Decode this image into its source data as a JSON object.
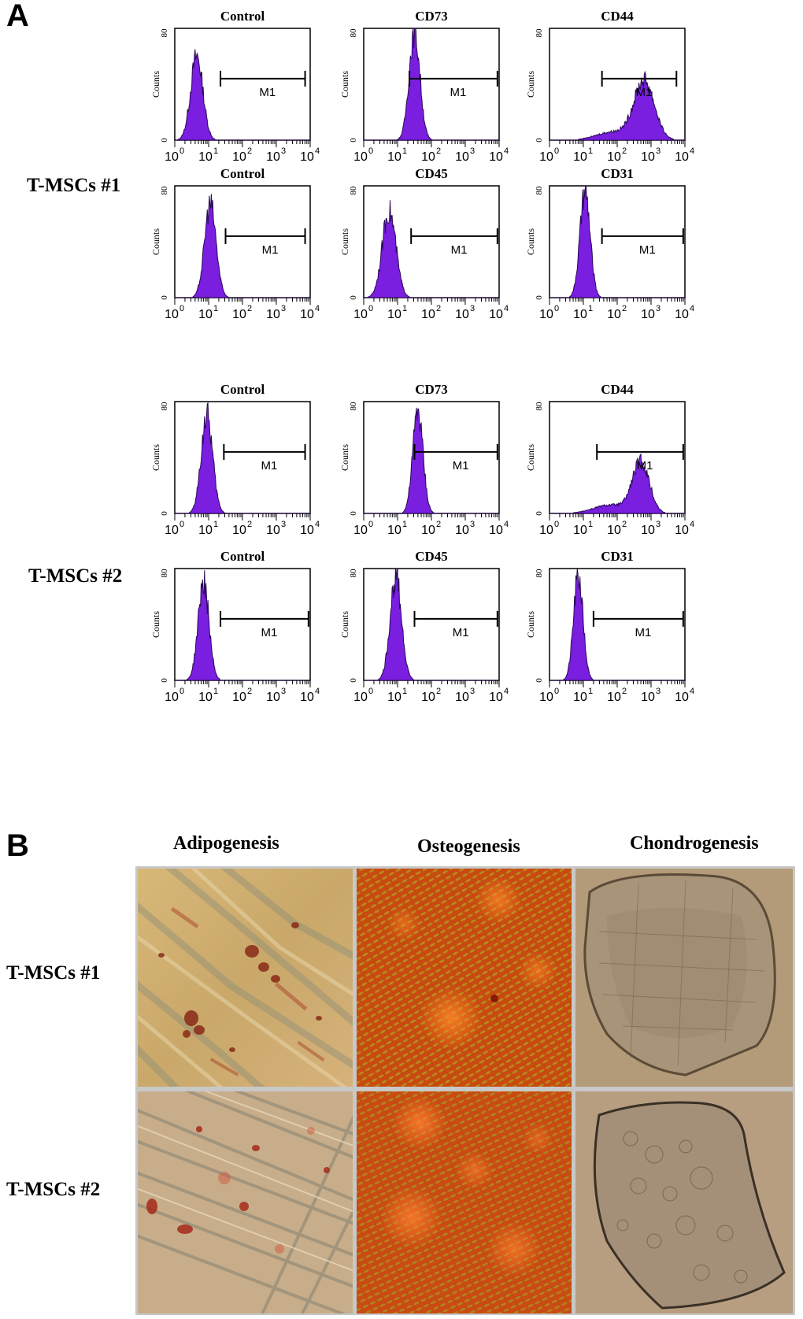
{
  "figure": {
    "panel_a_letter": "A",
    "panel_b_letter": "B",
    "groups": [
      "T-MSCs #1",
      "T-MSCs #2"
    ],
    "flow_axis": {
      "y_label": "Counts",
      "y_ticks": [
        "0",
        "80"
      ],
      "x_ticks": [
        "10",
        "10",
        "10",
        "10",
        "10"
      ],
      "x_exponents": [
        "0",
        "1",
        "2",
        "3",
        "4"
      ],
      "gate_label": "M1"
    },
    "differentiation": {
      "columns": [
        "Adipogenesis",
        "Osteogenesis",
        "Chondrogenesis"
      ],
      "rows": [
        "T-MSCs #1",
        "T-MSCs #2"
      ]
    }
  },
  "chart_data": [
    {
      "type": "histogram",
      "group": "T-MSCs #1",
      "title": "Control",
      "peak_log": 0.65,
      "width": 0.18,
      "height": 60,
      "gate": [
        1.35,
        3.85
      ],
      "ylabel": "Counts",
      "ylim": [
        0,
        80
      ],
      "xscale": "log",
      "xlim": [
        0,
        4
      ]
    },
    {
      "type": "histogram",
      "group": "T-MSCs #1",
      "title": "CD73",
      "peak_log": 1.5,
      "width": 0.16,
      "height": 78,
      "gate": [
        1.35,
        3.95
      ],
      "ylabel": "Counts",
      "ylim": [
        0,
        80
      ],
      "xscale": "log",
      "xlim": [
        0,
        4
      ]
    },
    {
      "type": "histogram",
      "group": "T-MSCs #1",
      "title": "CD44",
      "peak_log": 2.8,
      "width": 0.3,
      "height": 42,
      "gate": [
        1.55,
        3.75
      ],
      "ylabel": "Counts",
      "ylim": [
        0,
        80
      ],
      "xscale": "log",
      "xlim": [
        0,
        4
      ]
    },
    {
      "type": "histogram",
      "group": "T-MSCs #1",
      "title": "Control",
      "peak_log": 1.05,
      "width": 0.17,
      "height": 67,
      "gate": [
        1.5,
        3.85
      ],
      "ylabel": "Counts",
      "ylim": [
        0,
        80
      ],
      "xscale": "log",
      "xlim": [
        0,
        4
      ]
    },
    {
      "type": "histogram",
      "group": "T-MSCs #1",
      "title": "CD45",
      "peak_log": 0.75,
      "width": 0.2,
      "height": 62,
      "gate": [
        1.4,
        3.95
      ],
      "ylabel": "Counts",
      "ylim": [
        0,
        80
      ],
      "xscale": "log",
      "xlim": [
        0,
        4
      ]
    },
    {
      "type": "histogram",
      "group": "T-MSCs #1",
      "title": "CD31",
      "peak_log": 1.05,
      "width": 0.15,
      "height": 75,
      "gate": [
        1.55,
        3.95
      ],
      "ylabel": "Counts",
      "ylim": [
        0,
        80
      ],
      "xscale": "log",
      "xlim": [
        0,
        4
      ]
    },
    {
      "type": "histogram",
      "group": "T-MSCs #2",
      "title": "Control",
      "peak_log": 0.95,
      "width": 0.17,
      "height": 70,
      "gate": [
        1.45,
        3.85
      ],
      "ylabel": "Counts",
      "ylim": [
        0,
        80
      ],
      "xscale": "log",
      "xlim": [
        0,
        4
      ]
    },
    {
      "type": "histogram",
      "group": "T-MSCs #2",
      "title": "CD73",
      "peak_log": 1.6,
      "width": 0.15,
      "height": 74,
      "gate": [
        1.5,
        3.95
      ],
      "ylabel": "Counts",
      "ylim": [
        0,
        80
      ],
      "xscale": "log",
      "xlim": [
        0,
        4
      ]
    },
    {
      "type": "histogram",
      "group": "T-MSCs #2",
      "title": "CD44",
      "peak_log": 2.7,
      "width": 0.25,
      "height": 36,
      "gate": [
        1.4,
        3.95
      ],
      "ylabel": "Counts",
      "ylim": [
        0,
        80
      ],
      "xscale": "log",
      "xlim": [
        0,
        4
      ]
    },
    {
      "type": "histogram",
      "group": "T-MSCs #2",
      "title": "Control",
      "peak_log": 0.85,
      "width": 0.16,
      "height": 70,
      "gate": [
        1.35,
        3.95
      ],
      "ylabel": "Counts",
      "ylim": [
        0,
        80
      ],
      "xscale": "log",
      "xlim": [
        0,
        4
      ]
    },
    {
      "type": "histogram",
      "group": "T-MSCs #2",
      "title": "CD45",
      "peak_log": 0.95,
      "width": 0.17,
      "height": 74,
      "gate": [
        1.5,
        3.95
      ],
      "ylabel": "Counts",
      "ylim": [
        0,
        80
      ],
      "xscale": "log",
      "xlim": [
        0,
        4
      ]
    },
    {
      "type": "histogram",
      "group": "T-MSCs #2",
      "title": "CD31",
      "peak_log": 0.85,
      "width": 0.14,
      "height": 75,
      "gate": [
        1.3,
        3.95
      ],
      "ylabel": "Counts",
      "ylim": [
        0,
        80
      ],
      "xscale": "log",
      "xlim": [
        0,
        4
      ]
    }
  ]
}
